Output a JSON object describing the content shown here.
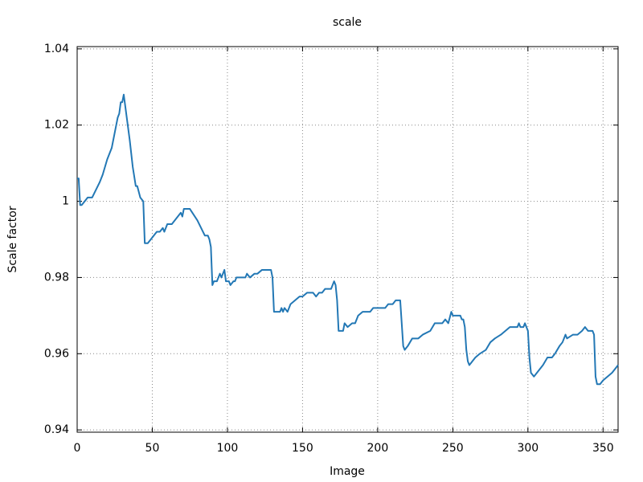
{
  "chart_data": {
    "type": "line",
    "title": "scale",
    "x_label": "Image",
    "y_label": "Scale factor",
    "xlim": [
      0,
      360
    ],
    "ylim": [
      0.9394,
      1.0406
    ],
    "xticks": [
      0,
      50,
      100,
      150,
      200,
      250,
      300,
      350
    ],
    "yticks": [
      0.94,
      0.96,
      0.98,
      1,
      1.02,
      1.04
    ],
    "grid": true,
    "x": [
      0,
      1,
      2,
      3,
      5,
      7,
      10,
      15,
      17,
      20,
      23,
      25,
      27,
      28,
      29,
      30,
      31,
      32,
      33,
      35,
      37,
      39,
      40,
      42,
      44,
      45,
      47,
      49,
      51,
      53,
      55,
      57,
      58,
      60,
      63,
      65,
      67,
      69,
      70,
      71,
      75,
      80,
      85,
      87,
      88,
      89,
      90,
      91,
      93,
      95,
      96,
      98,
      99,
      101,
      102,
      104,
      105,
      106,
      110,
      112,
      113,
      115,
      118,
      120,
      123,
      127,
      129,
      130,
      131,
      135,
      136,
      137,
      138,
      140,
      142,
      145,
      148,
      150,
      153,
      157,
      159,
      161,
      163,
      165,
      167,
      169,
      171,
      172,
      173,
      174,
      177,
      178,
      180,
      183,
      185,
      187,
      190,
      195,
      197,
      205,
      207,
      210,
      212,
      215,
      216,
      217,
      218,
      220,
      223,
      227,
      230,
      235,
      238,
      243,
      245,
      247,
      249,
      250,
      255,
      256,
      257,
      258,
      259,
      260,
      261,
      263,
      265,
      268,
      272,
      275,
      278,
      282,
      285,
      288,
      293,
      294,
      295,
      297,
      298,
      300,
      301,
      302,
      304,
      306,
      310,
      313,
      316,
      318,
      321,
      323,
      325,
      326,
      330,
      333,
      336,
      338,
      340,
      343,
      344,
      345,
      346,
      348,
      350,
      353,
      356,
      358,
      360
    ],
    "series": [
      {
        "name": "scale",
        "color": "#2378b5",
        "values": [
          1.006,
          1.006,
          0.999,
          0.999,
          1.0,
          1.001,
          1.001,
          1.005,
          1.007,
          1.011,
          1.014,
          1.018,
          1.022,
          1.023,
          1.026,
          1.026,
          1.028,
          1.025,
          1.022,
          1.016,
          1.009,
          1.004,
          1.004,
          1.001,
          1.0,
          0.989,
          0.989,
          0.99,
          0.991,
          0.992,
          0.992,
          0.993,
          0.992,
          0.994,
          0.994,
          0.995,
          0.996,
          0.997,
          0.996,
          0.998,
          0.998,
          0.995,
          0.991,
          0.991,
          0.99,
          0.988,
          0.978,
          0.979,
          0.979,
          0.981,
          0.98,
          0.982,
          0.979,
          0.979,
          0.978,
          0.979,
          0.979,
          0.98,
          0.98,
          0.98,
          0.981,
          0.98,
          0.981,
          0.981,
          0.982,
          0.982,
          0.982,
          0.98,
          0.971,
          0.971,
          0.972,
          0.971,
          0.972,
          0.971,
          0.973,
          0.974,
          0.975,
          0.975,
          0.976,
          0.976,
          0.975,
          0.976,
          0.976,
          0.977,
          0.977,
          0.977,
          0.979,
          0.978,
          0.974,
          0.966,
          0.966,
          0.968,
          0.967,
          0.968,
          0.968,
          0.97,
          0.971,
          0.971,
          0.972,
          0.972,
          0.973,
          0.973,
          0.974,
          0.974,
          0.968,
          0.962,
          0.961,
          0.962,
          0.964,
          0.964,
          0.965,
          0.966,
          0.968,
          0.968,
          0.969,
          0.968,
          0.971,
          0.97,
          0.97,
          0.969,
          0.969,
          0.967,
          0.961,
          0.958,
          0.957,
          0.958,
          0.959,
          0.96,
          0.961,
          0.963,
          0.964,
          0.965,
          0.966,
          0.967,
          0.967,
          0.968,
          0.967,
          0.967,
          0.968,
          0.966,
          0.959,
          0.955,
          0.954,
          0.955,
          0.957,
          0.959,
          0.959,
          0.96,
          0.962,
          0.963,
          0.965,
          0.964,
          0.965,
          0.965,
          0.966,
          0.967,
          0.966,
          0.966,
          0.965,
          0.954,
          0.952,
          0.952,
          0.953,
          0.954,
          0.955,
          0.956,
          0.957
        ]
      }
    ]
  }
}
